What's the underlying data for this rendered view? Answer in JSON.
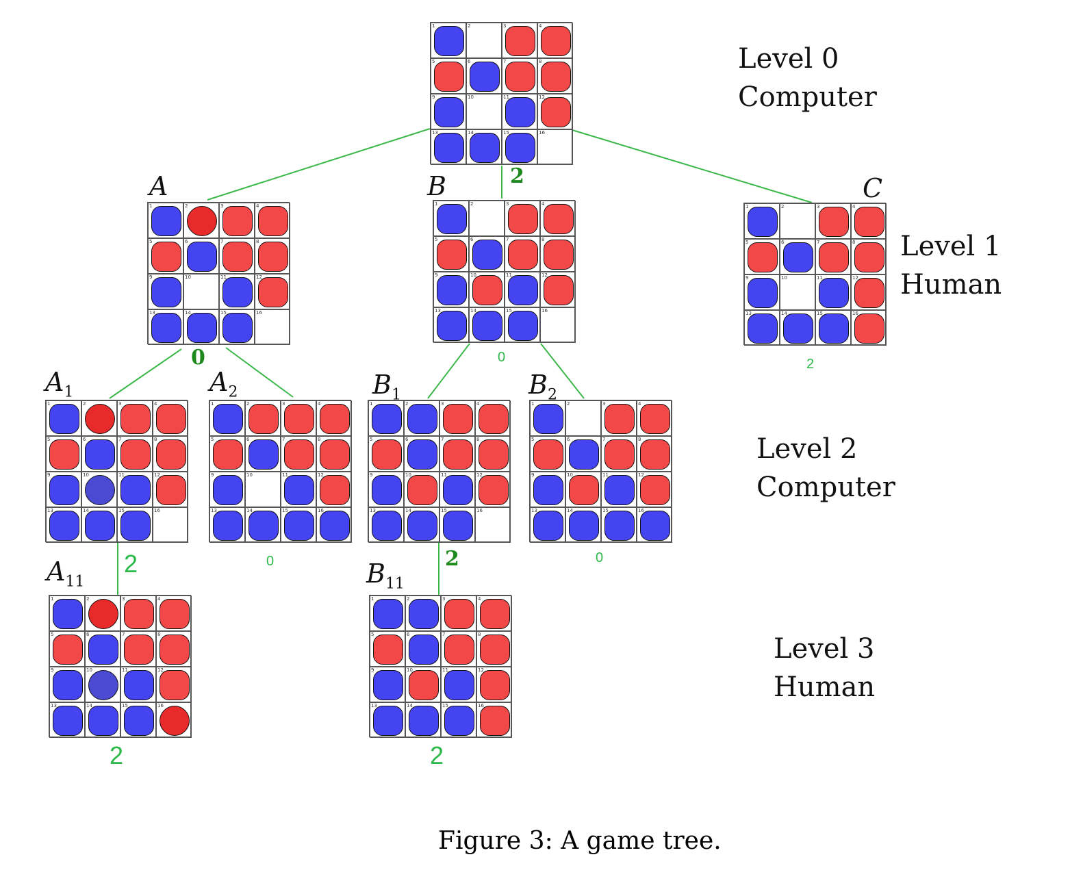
{
  "levels": [
    {
      "line1": "Level 0",
      "line2": "Computer"
    },
    {
      "line1": "Level 1",
      "line2": "Human"
    },
    {
      "line1": "Level 2",
      "line2": "Computer"
    },
    {
      "line1": "Level 3",
      "line2": "Human"
    }
  ],
  "caption": "Figure 3: A game tree.",
  "colors": {
    "blue_piece": "#4444f0",
    "red_piece": "#f24848",
    "edge_green": "#3cb84a",
    "score_green": "#2db84a"
  },
  "nodes": [
    {
      "id": "root",
      "label": "",
      "sub": "",
      "score": "",
      "cells": [
        "B",
        "E",
        "R",
        "R",
        "R",
        "B",
        "R",
        "R",
        "B",
        "E",
        "B",
        "R",
        "B",
        "B",
        "B",
        "E"
      ]
    },
    {
      "id": "A",
      "label": "A",
      "sub": "",
      "score": "0",
      "cells": [
        "B",
        "RC",
        "R",
        "R",
        "R",
        "B",
        "R",
        "R",
        "B",
        "E",
        "B",
        "R",
        "B",
        "B",
        "B",
        "E"
      ]
    },
    {
      "id": "B",
      "label": "B",
      "sub": "",
      "score": "0",
      "cells": [
        "B",
        "E",
        "R",
        "R",
        "R",
        "B",
        "R",
        "R",
        "B",
        "R",
        "B",
        "R",
        "B",
        "B",
        "B",
        "E"
      ]
    },
    {
      "id": "C",
      "label": "C",
      "sub": "",
      "score": "2",
      "cells": [
        "B",
        "E",
        "R",
        "R",
        "R",
        "B",
        "R",
        "R",
        "B",
        "E",
        "B",
        "R",
        "B",
        "B",
        "B",
        "R"
      ]
    },
    {
      "id": "A1",
      "label": "A",
      "sub": "1",
      "score": "2",
      "cells": [
        "B",
        "RC",
        "R",
        "R",
        "R",
        "B",
        "R",
        "R",
        "B",
        "BC",
        "B",
        "R",
        "B",
        "B",
        "B",
        "E"
      ]
    },
    {
      "id": "A2",
      "label": "A",
      "sub": "2",
      "score": "0",
      "cells": [
        "B",
        "R",
        "R",
        "R",
        "R",
        "B",
        "R",
        "R",
        "B",
        "E",
        "B",
        "R",
        "B",
        "B",
        "B",
        "B"
      ]
    },
    {
      "id": "B1",
      "label": "B",
      "sub": "1",
      "score": "2",
      "cells": [
        "B",
        "B",
        "R",
        "R",
        "R",
        "B",
        "R",
        "R",
        "B",
        "R",
        "B",
        "R",
        "B",
        "B",
        "B",
        "E"
      ]
    },
    {
      "id": "B2",
      "label": "B",
      "sub": "2",
      "score": "0",
      "cells": [
        "B",
        "E",
        "R",
        "R",
        "R",
        "B",
        "R",
        "R",
        "B",
        "R",
        "B",
        "R",
        "B",
        "B",
        "B",
        "B"
      ]
    },
    {
      "id": "A11",
      "label": "A",
      "sub": "11",
      "score": "2",
      "cells": [
        "B",
        "RC",
        "R",
        "R",
        "R",
        "B",
        "R",
        "R",
        "B",
        "BC",
        "B",
        "R",
        "B",
        "B",
        "B",
        "RC"
      ]
    },
    {
      "id": "B11",
      "label": "B",
      "sub": "11",
      "score": "2",
      "cells": [
        "B",
        "B",
        "R",
        "R",
        "R",
        "B",
        "R",
        "R",
        "B",
        "R",
        "B",
        "R",
        "B",
        "B",
        "B",
        "R"
      ]
    }
  ],
  "edges": [
    [
      "root",
      "A"
    ],
    [
      "root",
      "B"
    ],
    [
      "root",
      "C"
    ],
    [
      "A",
      "A1"
    ],
    [
      "A",
      "A2"
    ],
    [
      "B",
      "B1"
    ],
    [
      "B",
      "B2"
    ],
    [
      "A1",
      "A11"
    ],
    [
      "B1",
      "B11"
    ]
  ],
  "edge_scores": {
    "root-B": "2"
  }
}
